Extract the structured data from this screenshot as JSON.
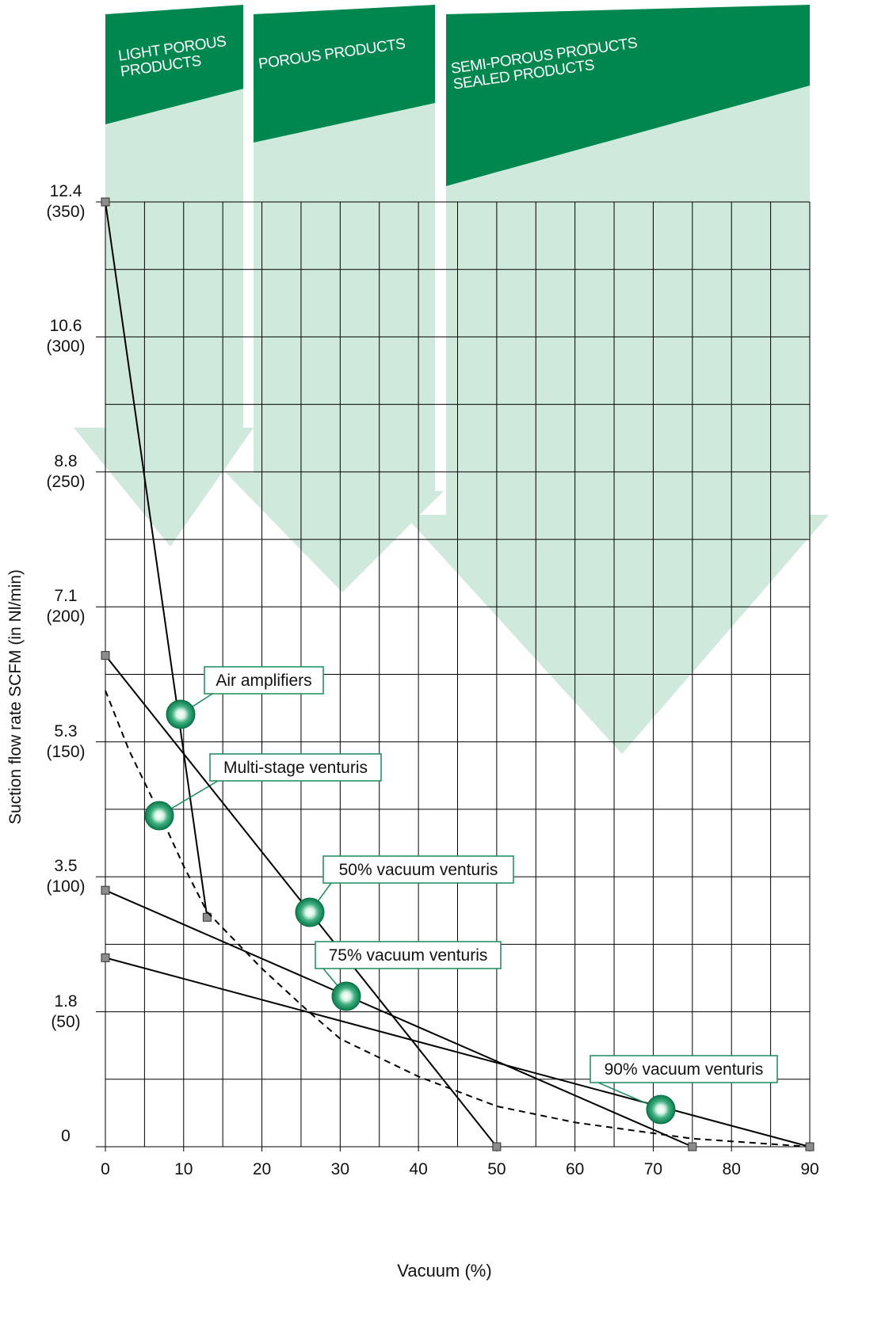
{
  "chart_data": {
    "type": "line",
    "xlabel": "Vacuum (%)",
    "ylabel": "Suction flow rate SCFM (in Nl/min)",
    "xlim": [
      0,
      90
    ],
    "ylim": [
      0,
      350
    ],
    "xticks": [
      0,
      10,
      20,
      30,
      40,
      50,
      60,
      70,
      80,
      90
    ],
    "yticks": [
      {
        "value": 0,
        "label": "0"
      },
      {
        "value": 50,
        "label": "1.8\n(50)"
      },
      {
        "value": 100,
        "label": "3.5\n(100)"
      },
      {
        "value": 150,
        "label": "5.3\n(150)"
      },
      {
        "value": 200,
        "label": "7.1\n(200)"
      },
      {
        "value": 250,
        "label": "8.8\n(250)"
      },
      {
        "value": 300,
        "label": "10.6\n(300)"
      },
      {
        "value": 350,
        "label": "12.4\n(350)"
      }
    ],
    "xgrid": [
      0,
      5,
      10,
      15,
      20,
      25,
      30,
      35,
      40,
      45,
      50,
      55,
      60,
      65,
      70,
      75,
      80,
      85,
      90
    ],
    "ygrid": [
      0,
      25,
      50,
      75,
      100,
      125,
      150,
      175,
      200,
      225,
      250,
      275,
      300,
      325,
      350
    ],
    "grid": true,
    "zones": [
      "LIGHT POROUS\nPRODUCTS",
      "POROUS PRODUCTS",
      "SEMI-POROUS PRODUCTS\nSEALED PRODUCTS"
    ],
    "series": [
      {
        "name": "Air amplifiers",
        "color": "#000000",
        "dashed": false,
        "markers": true,
        "x": [
          0,
          13
        ],
        "values": [
          350,
          85
        ]
      },
      {
        "name": "Multi-stage venturis",
        "color": "#000000",
        "dashed": true,
        "markers": false,
        "x": [
          0,
          3,
          7,
          10,
          13,
          20,
          26,
          30,
          40,
          50,
          60,
          75,
          90
        ],
        "values": [
          169,
          147,
          123,
          104,
          87,
          66,
          50,
          40,
          26,
          15,
          9,
          3,
          0
        ]
      },
      {
        "name": "50% vacuum venturis",
        "color": "#000000",
        "dashed": false,
        "markers": true,
        "x": [
          0,
          50
        ],
        "values": [
          182,
          0
        ]
      },
      {
        "name": "75% vacuum venturis",
        "color": "#000000",
        "dashed": false,
        "markers": true,
        "x": [
          0,
          75
        ],
        "values": [
          95,
          0
        ]
      },
      {
        "name": "90% vacuum venturis",
        "color": "#000000",
        "dashed": false,
        "markers": true,
        "x": [
          0,
          90
        ],
        "values": [
          70,
          0
        ]
      }
    ]
  }
}
